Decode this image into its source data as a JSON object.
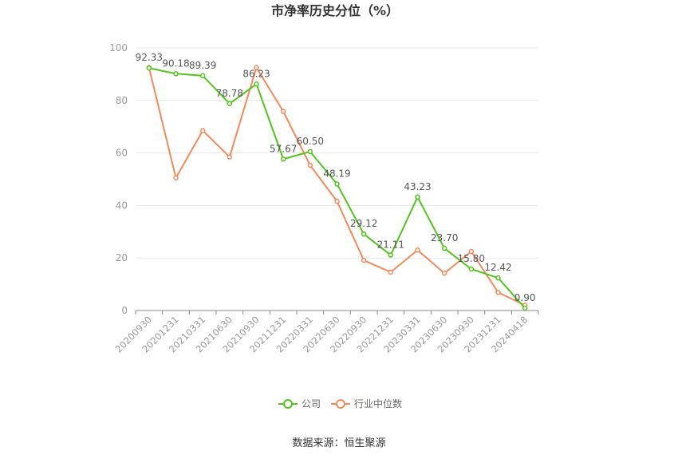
{
  "chart_data": {
    "type": "line",
    "title": "市净率历史分位（%）",
    "categories": [
      "20200930",
      "20201231",
      "20210331",
      "20210630",
      "20210930",
      "20211231",
      "20220331",
      "20220630",
      "20220930",
      "20221231",
      "20230331",
      "20230630",
      "20230930",
      "20231231",
      "20240418"
    ],
    "ylim": [
      0,
      100
    ],
    "yticks": [
      0,
      20,
      40,
      60,
      80,
      100
    ],
    "grid": true,
    "legend_position": "bottom",
    "series": [
      {
        "name": "公司",
        "color": "#52c41a",
        "values": [
          92.33,
          90.18,
          89.39,
          78.78,
          86.23,
          57.67,
          60.5,
          48.19,
          29.12,
          21.11,
          43.23,
          23.7,
          15.8,
          12.42,
          0.9
        ],
        "labels": [
          "92.33",
          "90.18",
          "89.39",
          "78.78",
          "86.23",
          "57.67",
          "60.50",
          "48.19",
          "29.12",
          "21.11",
          "43.23",
          "23.70",
          "15.80",
          "12.42",
          "0.90"
        ]
      },
      {
        "name": "行业中位数",
        "color": "#f5895a",
        "values": [
          92.5,
          50.5,
          68.5,
          58.5,
          92.5,
          75.8,
          55.3,
          41.6,
          19.1,
          14.6,
          23.0,
          14.2,
          22.5,
          6.9,
          2.0
        ]
      }
    ],
    "source": "数据来源：恒生聚源"
  }
}
